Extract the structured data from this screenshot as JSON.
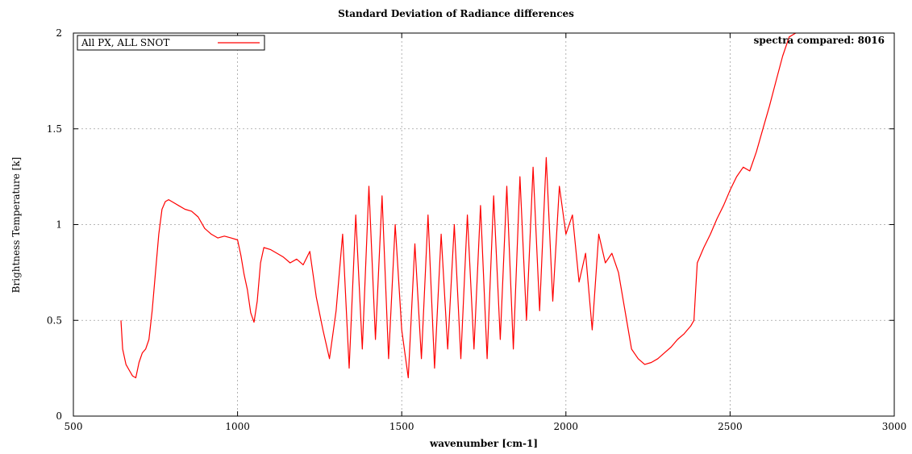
{
  "chart_data": {
    "type": "line",
    "title": "Standard Deviation of Radiance differences",
    "xlabel": "wavenumber [cm-1]",
    "ylabel": "Brightness Temperature [k]",
    "xlim": [
      500,
      3000
    ],
    "ylim": [
      0,
      2
    ],
    "xticks": [
      500,
      1000,
      1500,
      2000,
      2500,
      3000
    ],
    "yticks": [
      0,
      0.5,
      1,
      1.5,
      2
    ],
    "grid": true,
    "legend_position": "top-left",
    "annotation": "spectra compared: 8016",
    "series": [
      {
        "name": "All PX, ALL SNOT",
        "color": "#ff0000",
        "x": [
          645,
          650,
          660,
          670,
          680,
          690,
          700,
          710,
          720,
          730,
          740,
          750,
          760,
          770,
          780,
          790,
          800,
          820,
          840,
          860,
          880,
          900,
          920,
          940,
          960,
          980,
          1000,
          1010,
          1020,
          1030,
          1040,
          1050,
          1060,
          1070,
          1080,
          1100,
          1120,
          1140,
          1160,
          1180,
          1200,
          1220,
          1240,
          1260,
          1280,
          1300,
          1320,
          1340,
          1360,
          1380,
          1400,
          1420,
          1440,
          1460,
          1480,
          1500,
          1520,
          1540,
          1560,
          1580,
          1600,
          1620,
          1640,
          1660,
          1680,
          1700,
          1720,
          1740,
          1760,
          1780,
          1800,
          1820,
          1840,
          1860,
          1880,
          1900,
          1920,
          1940,
          1960,
          1980,
          2000,
          2020,
          2040,
          2060,
          2080,
          2100,
          2120,
          2140,
          2160,
          2180,
          2200,
          2220,
          2240,
          2260,
          2280,
          2300,
          2320,
          2340,
          2360,
          2380,
          2390,
          2395,
          2400,
          2420,
          2440,
          2460,
          2480,
          2500,
          2520,
          2540,
          2560,
          2580,
          2600,
          2620,
          2640,
          2660,
          2680,
          2700
        ],
        "y": [
          0.5,
          0.35,
          0.27,
          0.24,
          0.21,
          0.2,
          0.28,
          0.33,
          0.35,
          0.4,
          0.55,
          0.75,
          0.95,
          1.08,
          1.12,
          1.13,
          1.12,
          1.1,
          1.08,
          1.07,
          1.04,
          0.98,
          0.95,
          0.93,
          0.94,
          0.93,
          0.92,
          0.84,
          0.74,
          0.66,
          0.54,
          0.49,
          0.6,
          0.8,
          0.88,
          0.87,
          0.85,
          0.83,
          0.8,
          0.82,
          0.79,
          0.86,
          0.62,
          0.45,
          0.3,
          0.55,
          0.95,
          0.25,
          1.05,
          0.35,
          1.2,
          0.4,
          1.15,
          0.3,
          1.0,
          0.45,
          0.2,
          0.9,
          0.3,
          1.05,
          0.25,
          0.95,
          0.35,
          1.0,
          0.3,
          1.05,
          0.35,
          1.1,
          0.3,
          1.15,
          0.4,
          1.2,
          0.35,
          1.25,
          0.5,
          1.3,
          0.55,
          1.35,
          0.6,
          1.2,
          0.95,
          1.05,
          0.7,
          0.85,
          0.45,
          0.95,
          0.8,
          0.85,
          0.75,
          0.55,
          0.35,
          0.3,
          0.27,
          0.28,
          0.3,
          0.33,
          0.36,
          0.4,
          0.43,
          0.47,
          0.5,
          0.65,
          0.8,
          0.88,
          0.95,
          1.03,
          1.1,
          1.18,
          1.25,
          1.3,
          1.28,
          1.38,
          1.5,
          1.62,
          1.75,
          1.88,
          1.98,
          2.0
        ]
      }
    ]
  }
}
